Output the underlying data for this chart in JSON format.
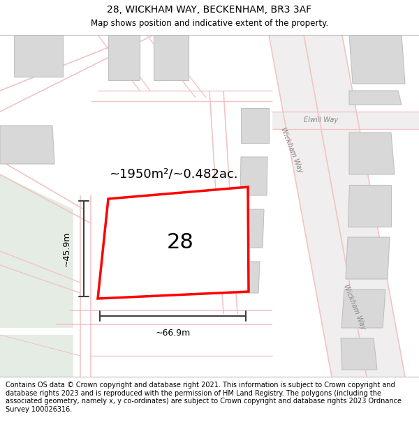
{
  "title": "28, WICKHAM WAY, BECKENHAM, BR3 3AF",
  "subtitle": "Map shows position and indicative extent of the property.",
  "area_text": "~1950m²/~0.482ac.",
  "width_text": "~66.9m",
  "height_text": "~45.9m",
  "number_text": "28",
  "footer_text": "Contains OS data © Crown copyright and database right 2021. This information is subject to Crown copyright and database rights 2023 and is reproduced with the permission of HM Land Registry. The polygons (including the associated geometry, namely x, y co-ordinates) are subject to Crown copyright and database rights 2023 Ordnance Survey 100026316.",
  "bg_color": "#ffffff",
  "map_bg": "#f8f8f8",
  "road_color": "#f2c4c4",
  "building_color": "#d8d8d8",
  "green_color": "#e4ece4",
  "property_edge": "#ff0000",
  "arrow_color": "#404040",
  "title_fontsize": 10,
  "subtitle_fontsize": 8.5,
  "footer_fontsize": 7.0,
  "road_label_color": "#888888",
  "road_label_size": 7
}
